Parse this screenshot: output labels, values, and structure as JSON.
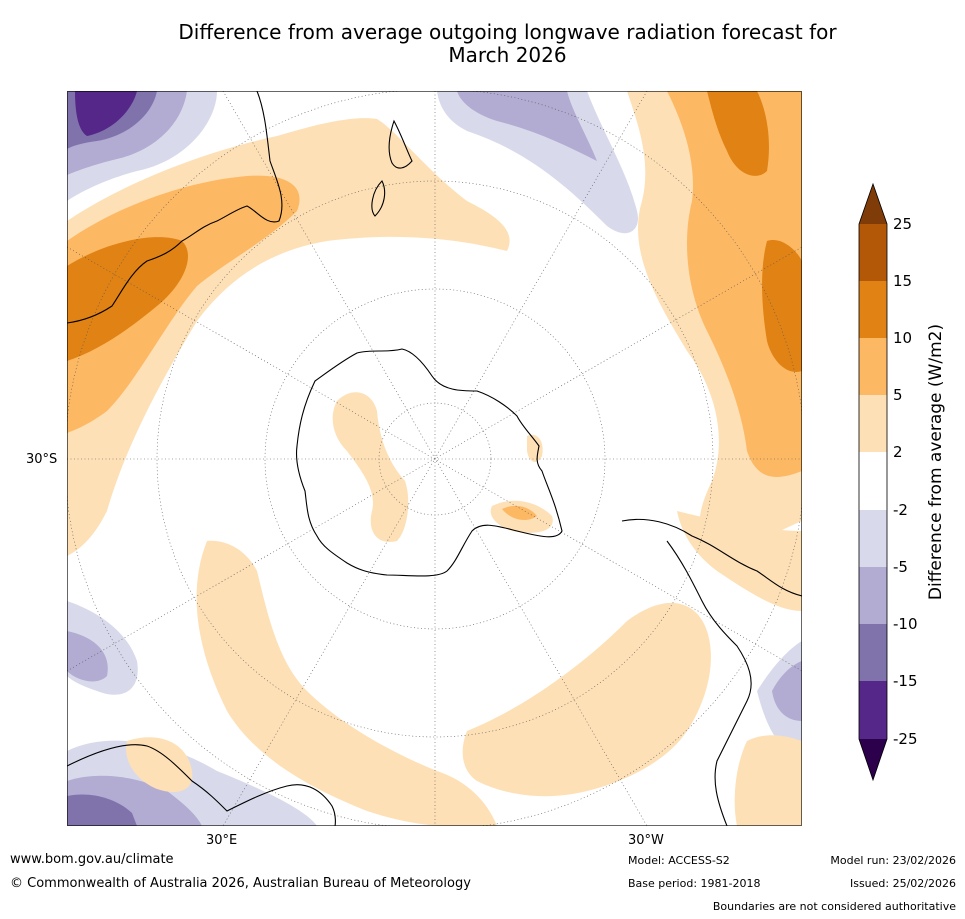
{
  "title_line1": "Difference from average outgoing longwave radiation forecast for",
  "title_line2": "March 2026",
  "map": {
    "lat_label": "30°S",
    "lon_labels": {
      "east": "30°E",
      "west": "30°W"
    }
  },
  "colorbar": {
    "label": "Difference from average (W/m2)",
    "ticks": [
      "25",
      "15",
      "10",
      "5",
      "2",
      "-2",
      "-5",
      "-10",
      "-15",
      "-25"
    ],
    "colors": {
      "above_max": "#7f3b08",
      "b15_25": "#b35806",
      "b10_15": "#e08214",
      "b5_10": "#fdb863",
      "b2_5": "#fee0b6",
      "neutral": "#ffffff",
      "bm2_m5": "#d8daeb",
      "bm5_m10": "#b2abd2",
      "bm10_m15": "#8073ac",
      "bm15_m25": "#542788",
      "below_min": "#2d004b"
    }
  },
  "footer": {
    "website": "www.bom.gov.au/climate",
    "copyright": "© Commonwealth of Australia 2026, Australian Bureau of Meteorology",
    "model": "Model: ACCESS-S2",
    "base_period": "Base period: 1981-2018",
    "model_run": "Model run: 23/02/2026",
    "issued": "Issued: 25/02/2026",
    "disclaimer": "Boundaries are not considered authoritative"
  }
}
